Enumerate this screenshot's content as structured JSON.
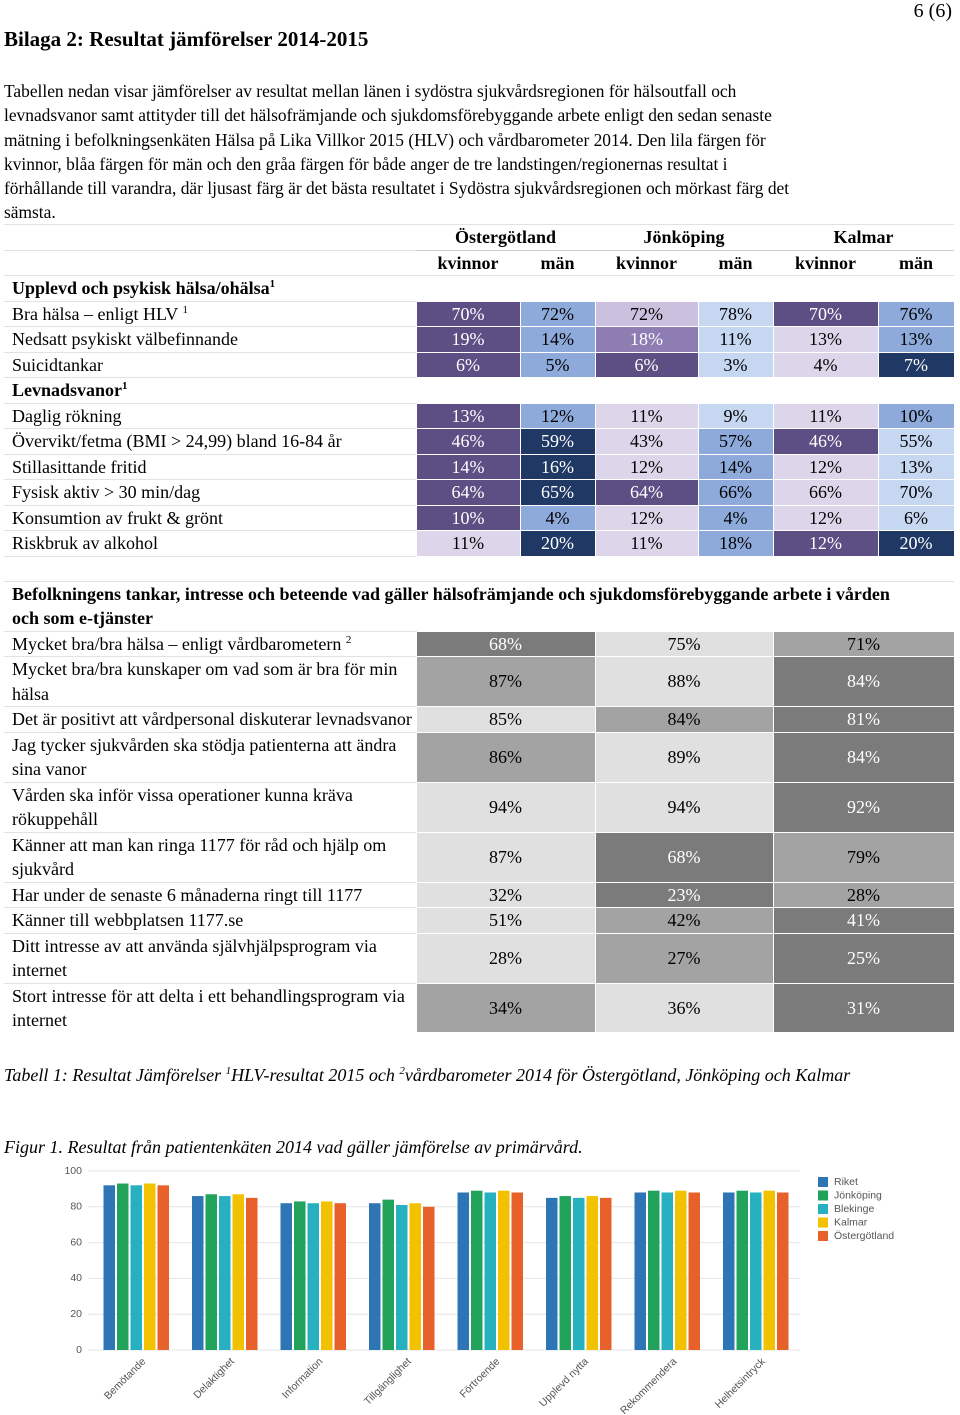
{
  "header": {
    "title": "Bilaga 2: Resultat jämförelser 2014-2015",
    "page": "6 (6)"
  },
  "intro": [
    "Tabellen nedan visar jämförelser av resultat mellan länen i sydöstra sjukvårdsregionen för hälsoutfall och",
    "levnadsvanor samt attityder till det hälsofrämjande och sjukdomsförebyggande arbete enligt den sedan senaste",
    "mätning i befolkningsenkäten Hälsa på Lika Villkor 2015 (HLV) och vårdbarometer 2014.  Den lila färgen för",
    "kvinnor, blåa färgen för män och den gråa färgen för både anger de tre landstingen/regionernas resultat i",
    "förhållande till varandra, där ljusast färg är det bästa resultatet i Sydöstra sjukvårdsregionen och mörkast färg det",
    "sämsta."
  ],
  "table": {
    "regions": [
      "Östergötland",
      "Jönköping",
      "Kalmar"
    ],
    "subcolumns": [
      "kvinnor",
      "män",
      "kvinnor",
      "män",
      "kvinnor",
      "män"
    ],
    "sections": [
      {
        "title": "Upplevd och psykisk hälsa/ohälsa",
        "note": "1",
        "rows": [
          {
            "label": "Bra hälsa – enligt HLV",
            "note": "1",
            "cells": [
              "70%",
              "72%",
              "72%",
              "78%",
              "70%",
              "76%"
            ],
            "fills": [
              "#5d4e83",
              "#8eaadb",
              "#cbc1df",
              "#c6d7f1",
              "#5d4e83",
              "#8eaadb"
            ]
          },
          {
            "label": "Nedsatt psykiskt välbefinnande",
            "cells": [
              "19%",
              "14%",
              "18%",
              "11%",
              "13%",
              "13%"
            ],
            "fills": [
              "#5d4e83",
              "#8eaadb",
              "#8e7db2",
              "#c6d7f1",
              "#ddd6ea",
              "#8eaadb"
            ]
          },
          {
            "label": "Suicidtankar",
            "cells": [
              "6%",
              "5%",
              "6%",
              "3%",
              "4%",
              "7%"
            ],
            "fills": [
              "#5d4e83",
              "#8eaadb",
              "#5d4e83",
              "#c6d7f1",
              "#ddd6ea",
              "#1f3864"
            ]
          }
        ]
      },
      {
        "title": "Levnadsvanor",
        "note": "1",
        "rows": [
          {
            "label": "Daglig rökning",
            "cells": [
              "13%",
              "12%",
              "11%",
              "9%",
              "11%",
              "10%"
            ],
            "fills": [
              "#5d4e83",
              "#8eaadb",
              "#ddd6ea",
              "#c6d7f1",
              "#ddd6ea",
              "#8eaadb"
            ]
          },
          {
            "label": "Övervikt/fetma (BMI > 24,99) bland 16-84 år",
            "cells": [
              "46%",
              "59%",
              "43%",
              "57%",
              "46%",
              "55%"
            ],
            "fills": [
              "#5d4e83",
              "#1f3864",
              "#ddd6ea",
              "#8eaadb",
              "#5d4e83",
              "#c6d7f1"
            ]
          },
          {
            "label": "Stillasittande fritid",
            "cells": [
              "14%",
              "16%",
              "12%",
              "14%",
              "12%",
              "13%"
            ],
            "fills": [
              "#5d4e83",
              "#1f3864",
              "#ddd6ea",
              "#8eaadb",
              "#ddd6ea",
              "#c6d7f1"
            ]
          },
          {
            "label": "Fysisk aktiv > 30 min/dag",
            "cells": [
              "64%",
              "65%",
              "64%",
              "66%",
              "66%",
              "70%"
            ],
            "fills": [
              "#5d4e83",
              "#1f3864",
              "#5d4e83",
              "#8eaadb",
              "#ddd6ea",
              "#c6d7f1"
            ]
          },
          {
            "label": "Konsumtion av frukt & grönt",
            "cells": [
              "10%",
              "4%",
              "12%",
              "4%",
              "12%",
              "6%"
            ],
            "fills": [
              "#5d4e83",
              "#8eaadb",
              "#ddd6ea",
              "#8eaadb",
              "#ddd6ea",
              "#c6d7f1"
            ]
          },
          {
            "label": "Riskbruk av alkohol",
            "cells": [
              "11%",
              "20%",
              "11%",
              "18%",
              "12%",
              "20%"
            ],
            "fills": [
              "#ddd6ea",
              "#1f3864",
              "#ddd6ea",
              "#8eaadb",
              "#5d4e83",
              "#1f3864"
            ]
          }
        ]
      },
      {
        "title": "Befolkningens tankar, intresse och beteende vad gäller hälsofrämjande och sjukdomsförebyggande arbete i vården och som e-tjänster",
        "rows": [
          {
            "label": "Mycket bra/bra hälsa – enligt vårdbarometern",
            "note": "2",
            "cells": [
              "68%",
              "75%",
              "71%"
            ],
            "fills": [
              "#7b7b7b",
              "#e0e0e0",
              "#a3a3a3"
            ]
          },
          {
            "label": "Mycket bra/bra kunskaper om vad som är bra för min hälsa",
            "cells": [
              "87%",
              "88%",
              "84%"
            ],
            "fills": [
              "#a3a3a3",
              "#e0e0e0",
              "#7b7b7b"
            ]
          },
          {
            "label": "Det är positivt att vårdpersonal diskuterar levnadsvanor",
            "cells": [
              "85%",
              "84%",
              "81%"
            ],
            "fills": [
              "#e0e0e0",
              "#a3a3a3",
              "#7b7b7b"
            ]
          },
          {
            "label": "Jag tycker sjukvården ska stödja patienterna att ändra sina vanor",
            "cells": [
              "86%",
              "89%",
              "84%"
            ],
            "fills": [
              "#a3a3a3",
              "#e0e0e0",
              "#7b7b7b"
            ]
          },
          {
            "label": "Vården ska inför vissa operationer kunna kräva rökuppehåll",
            "cells": [
              "94%",
              "94%",
              "92%"
            ],
            "fills": [
              "#e0e0e0",
              "#e0e0e0",
              "#7b7b7b"
            ]
          },
          {
            "label": "Känner att man kan ringa 1177 för råd och hjälp om sjukvård",
            "cells": [
              "87%",
              "68%",
              "79%"
            ],
            "fills": [
              "#e0e0e0",
              "#7b7b7b",
              "#a3a3a3"
            ]
          },
          {
            "label": "Har under de senaste 6 månaderna ringt till 1177",
            "cells": [
              "32%",
              "23%",
              "28%"
            ],
            "fills": [
              "#e0e0e0",
              "#7b7b7b",
              "#a3a3a3"
            ]
          },
          {
            "label": "Känner till webbplatsen 1177.se",
            "cells": [
              "51%",
              "42%",
              "41%"
            ],
            "fills": [
              "#e0e0e0",
              "#a3a3a3",
              "#7b7b7b"
            ]
          },
          {
            "label": "Ditt intresse av att använda självhjälpsprogram via internet",
            "cells": [
              "28%",
              "27%",
              "25%"
            ],
            "fills": [
              "#e0e0e0",
              "#a3a3a3",
              "#7b7b7b"
            ]
          },
          {
            "label": "Stort intresse för att delta i ett behandlingsprogram via internet",
            "cells": [
              "34%",
              "36%",
              "31%"
            ],
            "fills": [
              "#a3a3a3",
              "#e0e0e0",
              "#7b7b7b"
            ]
          }
        ]
      }
    ]
  },
  "caption": [
    "Tabell 1: Resultat Jämförelser ",
    "1",
    "HLV-resultat 2015 och ",
    "2",
    "vårdbarometer 2014 för Östergötland, Jönköping och Kalmar"
  ],
  "figure_caption": "Figur 1. Resultat från patientenkäten 2014 vad gäller jämförelse av primärvård.",
  "chart_data": {
    "type": "bar",
    "categories": [
      "Bemötande",
      "Delaktighet",
      "Information",
      "Tillgänglighet",
      "Förtroende",
      "Upplevd nytta",
      "Rekommendera",
      "Helhetsintryck"
    ],
    "series": [
      {
        "name": "Riket",
        "color": "#2e75b6",
        "values": [
          92,
          86,
          82,
          82,
          88,
          85,
          88,
          88
        ]
      },
      {
        "name": "Jönköping",
        "color": "#21a35b",
        "values": [
          93,
          87,
          83,
          84,
          89,
          86,
          89,
          89
        ]
      },
      {
        "name": "Blekinge",
        "color": "#26b0c0",
        "values": [
          92,
          86,
          82,
          81,
          88,
          85,
          88,
          88
        ]
      },
      {
        "name": "Kalmar",
        "color": "#f2c200",
        "values": [
          93,
          87,
          83,
          82,
          89,
          86,
          89,
          89
        ]
      },
      {
        "name": "Östergötland",
        "color": "#e8612a",
        "values": [
          92,
          85,
          82,
          80,
          88,
          85,
          88,
          88
        ]
      }
    ],
    "ylim": [
      0,
      100
    ],
    "yticks": [
      0,
      20,
      40,
      60,
      80,
      100
    ],
    "grid": true,
    "legend": "right"
  }
}
